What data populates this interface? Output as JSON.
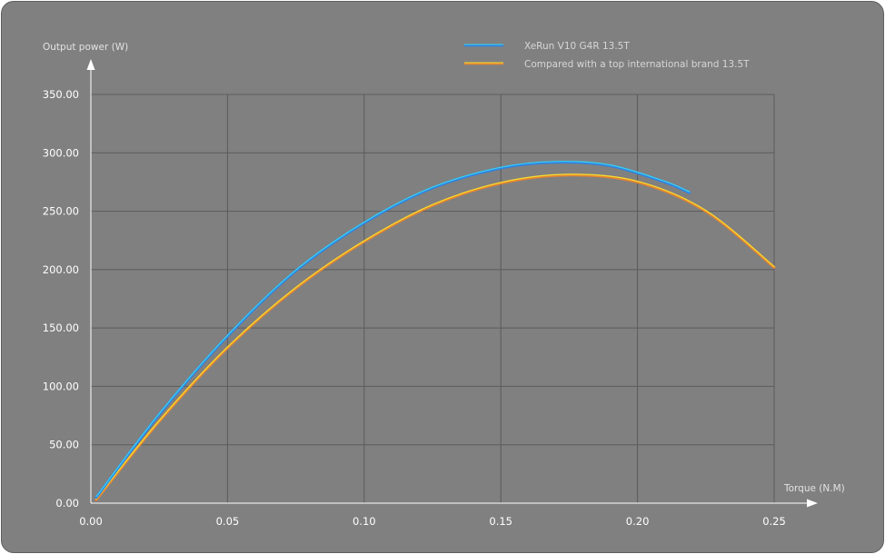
{
  "chart_data": {
    "type": "line",
    "title": "",
    "xlabel": "Torque (N.M)",
    "ylabel": "Output power (W)",
    "xlim": [
      0,
      0.25
    ],
    "ylim": [
      0,
      350
    ],
    "x_ticks": [
      "0.00",
      "0.05",
      "0.10",
      "0.15",
      "0.20",
      "0.25"
    ],
    "y_ticks": [
      "0.00",
      "50.00",
      "100.00",
      "150.00",
      "200.00",
      "250.00",
      "300.00",
      "350.00"
    ],
    "grid": true,
    "legend": "top-center",
    "series": [
      {
        "name": "XeRun V10 G4R 13.5T",
        "color": "#2a84e6",
        "highlight": "#3fd2ee",
        "x": [
          0.002,
          0.025,
          0.05,
          0.075,
          0.1,
          0.125,
          0.15,
          0.17,
          0.19,
          0.21,
          0.219
        ],
        "y": [
          5,
          76,
          143,
          199,
          240,
          270,
          287,
          292,
          289,
          275,
          266
        ]
      },
      {
        "name": "Compared with a top international brand 13.5T",
        "color": "#e7852e",
        "highlight": "#f2e033",
        "x": [
          0.002,
          0.025,
          0.05,
          0.075,
          0.1,
          0.125,
          0.15,
          0.175,
          0.2,
          0.225,
          0.25
        ],
        "y": [
          3,
          70,
          133,
          184,
          224,
          255,
          274,
          281,
          275,
          250,
          202
        ]
      }
    ]
  }
}
